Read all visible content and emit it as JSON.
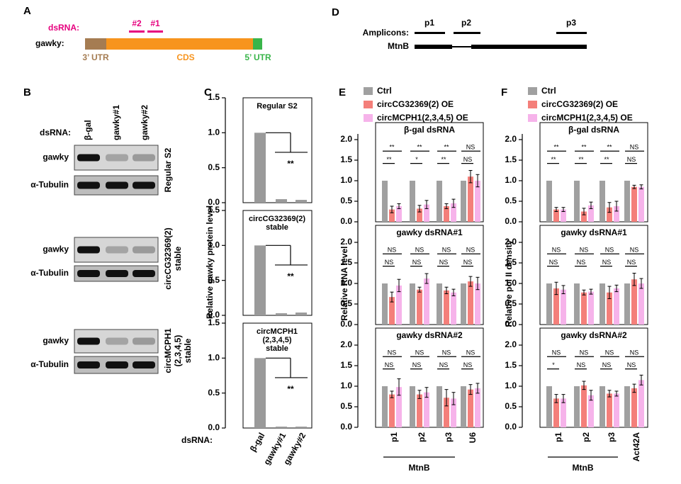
{
  "panel_a": {
    "label": "A",
    "dsrna_label": "dsRNA:",
    "dsrnas": [
      "#2",
      "#1"
    ],
    "gene_label": "gawky:",
    "regions": [
      "3’ UTR",
      "CDS",
      "5’ UTR"
    ]
  },
  "panel_b": {
    "label": "B",
    "dsrna_label": "dsRNA:",
    "lanes": [
      "β-gal",
      "gawky#1",
      "gawky#2"
    ],
    "blots": [
      {
        "rows": [
          "gawky",
          "α-Tubulin"
        ],
        "cell_line": [
          "Regular S2"
        ]
      },
      {
        "rows": [
          "gawky",
          "α-Tubulin"
        ],
        "cell_line": [
          "circCG32369(2)",
          "stable"
        ]
      },
      {
        "rows": [
          "gawky",
          "α-Tubulin"
        ],
        "cell_line": [
          "circMCPH1",
          "(2,3,4,5)",
          "stable"
        ]
      }
    ]
  },
  "panel_d": {
    "label": "D",
    "amplicons_label": "Amplicons:",
    "amplicons": [
      "p1",
      "p2",
      "p3"
    ],
    "gene": "MtnB"
  },
  "chart_data": [
    {
      "type": "bar",
      "panel_label": "C",
      "ylabel": "Relative gawky protein level",
      "xlabel": "dsRNA:",
      "categories": [
        "β-gal",
        "gawky#1",
        "gawky#2"
      ],
      "color": "#9a9a9a",
      "ylim": [
        0,
        1.5
      ],
      "yticks": [
        {
          "value": 0,
          "label": "0.0"
        },
        0.5,
        {
          "value": 1,
          "label": "1.0"
        },
        1.5
      ],
      "panels": [
        {
          "title": [
            "Regular S2"
          ],
          "values": [
            1.0,
            0.05,
            0.04
          ],
          "significance": "**"
        },
        {
          "title": [
            "circCG32369(2)",
            "stable"
          ],
          "values": [
            1.0,
            0.03,
            0.04
          ],
          "significance": "**"
        },
        {
          "title": [
            "circMCPH1",
            "(2,3,4,5)",
            "stable"
          ],
          "values": [
            1.0,
            0.02,
            0.02
          ],
          "significance": "**"
        }
      ]
    },
    {
      "type": "grouped_bar",
      "panel_label": "E",
      "ylabel": "Relative RNA level",
      "group_label": "MtnB",
      "categories": [
        "p1",
        "p2",
        "p3",
        "U6"
      ],
      "series": [
        {
          "name": "Ctrl",
          "color": "#a0a0a0"
        },
        {
          "name": "circCG32369(2) OE",
          "color": "#f47f7a"
        },
        {
          "name": "circMCPH1(2,3,4,5) OE",
          "color": "#f6b3ea"
        }
      ],
      "ylim": [
        0,
        2
      ],
      "yticks": [
        {
          "value": 0,
          "label": "0.0"
        },
        0.5,
        {
          "value": 1,
          "label": "1.0"
        },
        1.5,
        {
          "value": 2,
          "label": "2.0"
        }
      ],
      "panels": [
        {
          "title": "β-gal dsRNA",
          "values": [
            [
              1,
              1,
              1,
              1
            ],
            [
              0.3,
              0.32,
              0.38,
              1.1
            ],
            [
              0.38,
              0.42,
              0.45,
              1.0
            ]
          ],
          "errors": {
            "1": [
              0.08,
              0.08,
              0.06,
              0.15
            ],
            "2": [
              0.06,
              0.1,
              0.1,
              0.15
            ]
          },
          "significance": [
            [
              "**",
              "**"
            ],
            [
              "**",
              "*"
            ],
            [
              "**",
              "**"
            ],
            [
              "NS",
              "NS"
            ]
          ]
        },
        {
          "title": "gawky dsRNA#1",
          "values": [
            [
              1,
              1,
              1,
              1
            ],
            [
              0.67,
              0.85,
              0.83,
              1.05
            ],
            [
              0.95,
              1.12,
              0.78,
              1.0
            ]
          ],
          "errors": {
            "1": [
              0.12,
              0.06,
              0.08,
              0.12
            ],
            "2": [
              0.15,
              0.12,
              0.08,
              0.15
            ]
          },
          "significance": [
            [
              "NS",
              "NS"
            ],
            [
              "NS",
              "NS"
            ],
            [
              "NS",
              "NS"
            ],
            [
              "NS",
              "NS"
            ]
          ]
        },
        {
          "title": "gawky dsRNA#2",
          "values": [
            [
              1,
              1,
              1,
              1
            ],
            [
              0.8,
              0.8,
              0.72,
              0.92
            ],
            [
              0.98,
              0.85,
              0.7,
              0.95
            ]
          ],
          "errors": {
            "1": [
              0.08,
              0.1,
              0.2,
              0.12
            ],
            "2": [
              0.2,
              0.12,
              0.15,
              0.12
            ]
          },
          "significance": [
            [
              "NS",
              "NS"
            ],
            [
              "NS",
              "NS"
            ],
            [
              "NS",
              "NS"
            ],
            [
              "NS",
              "NS"
            ]
          ]
        }
      ]
    },
    {
      "type": "grouped_bar",
      "panel_label": "F",
      "ylabel": "Relative pol II density",
      "group_label": "MtnB",
      "categories": [
        "p1",
        "p2",
        "p3",
        "Act42A"
      ],
      "series": [
        {
          "name": "Ctrl",
          "color": "#a0a0a0"
        },
        {
          "name": "circCG32369(2) OE",
          "color": "#f47f7a"
        },
        {
          "name": "circMCPH1(2,3,4,5) OE",
          "color": "#f6b3ea"
        }
      ],
      "ylim": [
        0,
        2
      ],
      "yticks": [
        {
          "value": 0,
          "label": "0.0"
        },
        0.5,
        {
          "value": 1,
          "label": "1.0"
        },
        1.5,
        {
          "value": 2,
          "label": "2.0"
        }
      ],
      "panels": [
        {
          "title": "β-gal dsRNA",
          "values": [
            [
              1,
              1,
              1,
              1
            ],
            [
              0.3,
              0.25,
              0.35,
              0.85
            ],
            [
              0.3,
              0.4,
              0.38,
              0.85
            ]
          ],
          "errors": {
            "1": [
              0.05,
              0.08,
              0.12,
              0.04
            ],
            "2": [
              0.05,
              0.08,
              0.12,
              0.05
            ]
          },
          "significance": [
            [
              "**",
              "**"
            ],
            [
              "**",
              "**"
            ],
            [
              "**",
              "**"
            ],
            [
              "NS",
              "NS"
            ]
          ]
        },
        {
          "title": "gawky dsRNA#1",
          "values": [
            [
              1,
              1,
              1,
              1
            ],
            [
              0.88,
              0.78,
              0.78,
              1.1
            ],
            [
              0.85,
              0.8,
              0.88,
              1.0
            ]
          ],
          "errors": {
            "1": [
              0.15,
              0.06,
              0.15,
              0.15
            ],
            "2": [
              0.1,
              0.06,
              0.08,
              0.12
            ]
          },
          "significance": [
            [
              "NS",
              "NS"
            ],
            [
              "NS",
              "NS"
            ],
            [
              "NS",
              "NS"
            ],
            [
              "NS",
              "NS"
            ]
          ]
        },
        {
          "title": "gawky dsRNA#2",
          "values": [
            [
              1,
              1,
              1,
              1
            ],
            [
              0.7,
              1.02,
              0.82,
              0.95
            ],
            [
              0.7,
              0.78,
              0.82,
              1.15
            ]
          ],
          "errors": {
            "1": [
              0.1,
              0.1,
              0.08,
              0.1
            ],
            "2": [
              0.1,
              0.12,
              0.06,
              0.12
            ]
          },
          "significance": [
            [
              "NS",
              "*"
            ],
            [
              "NS",
              "NS"
            ],
            [
              "NS",
              "NS"
            ],
            [
              "NS",
              "NS"
            ]
          ]
        }
      ]
    }
  ]
}
